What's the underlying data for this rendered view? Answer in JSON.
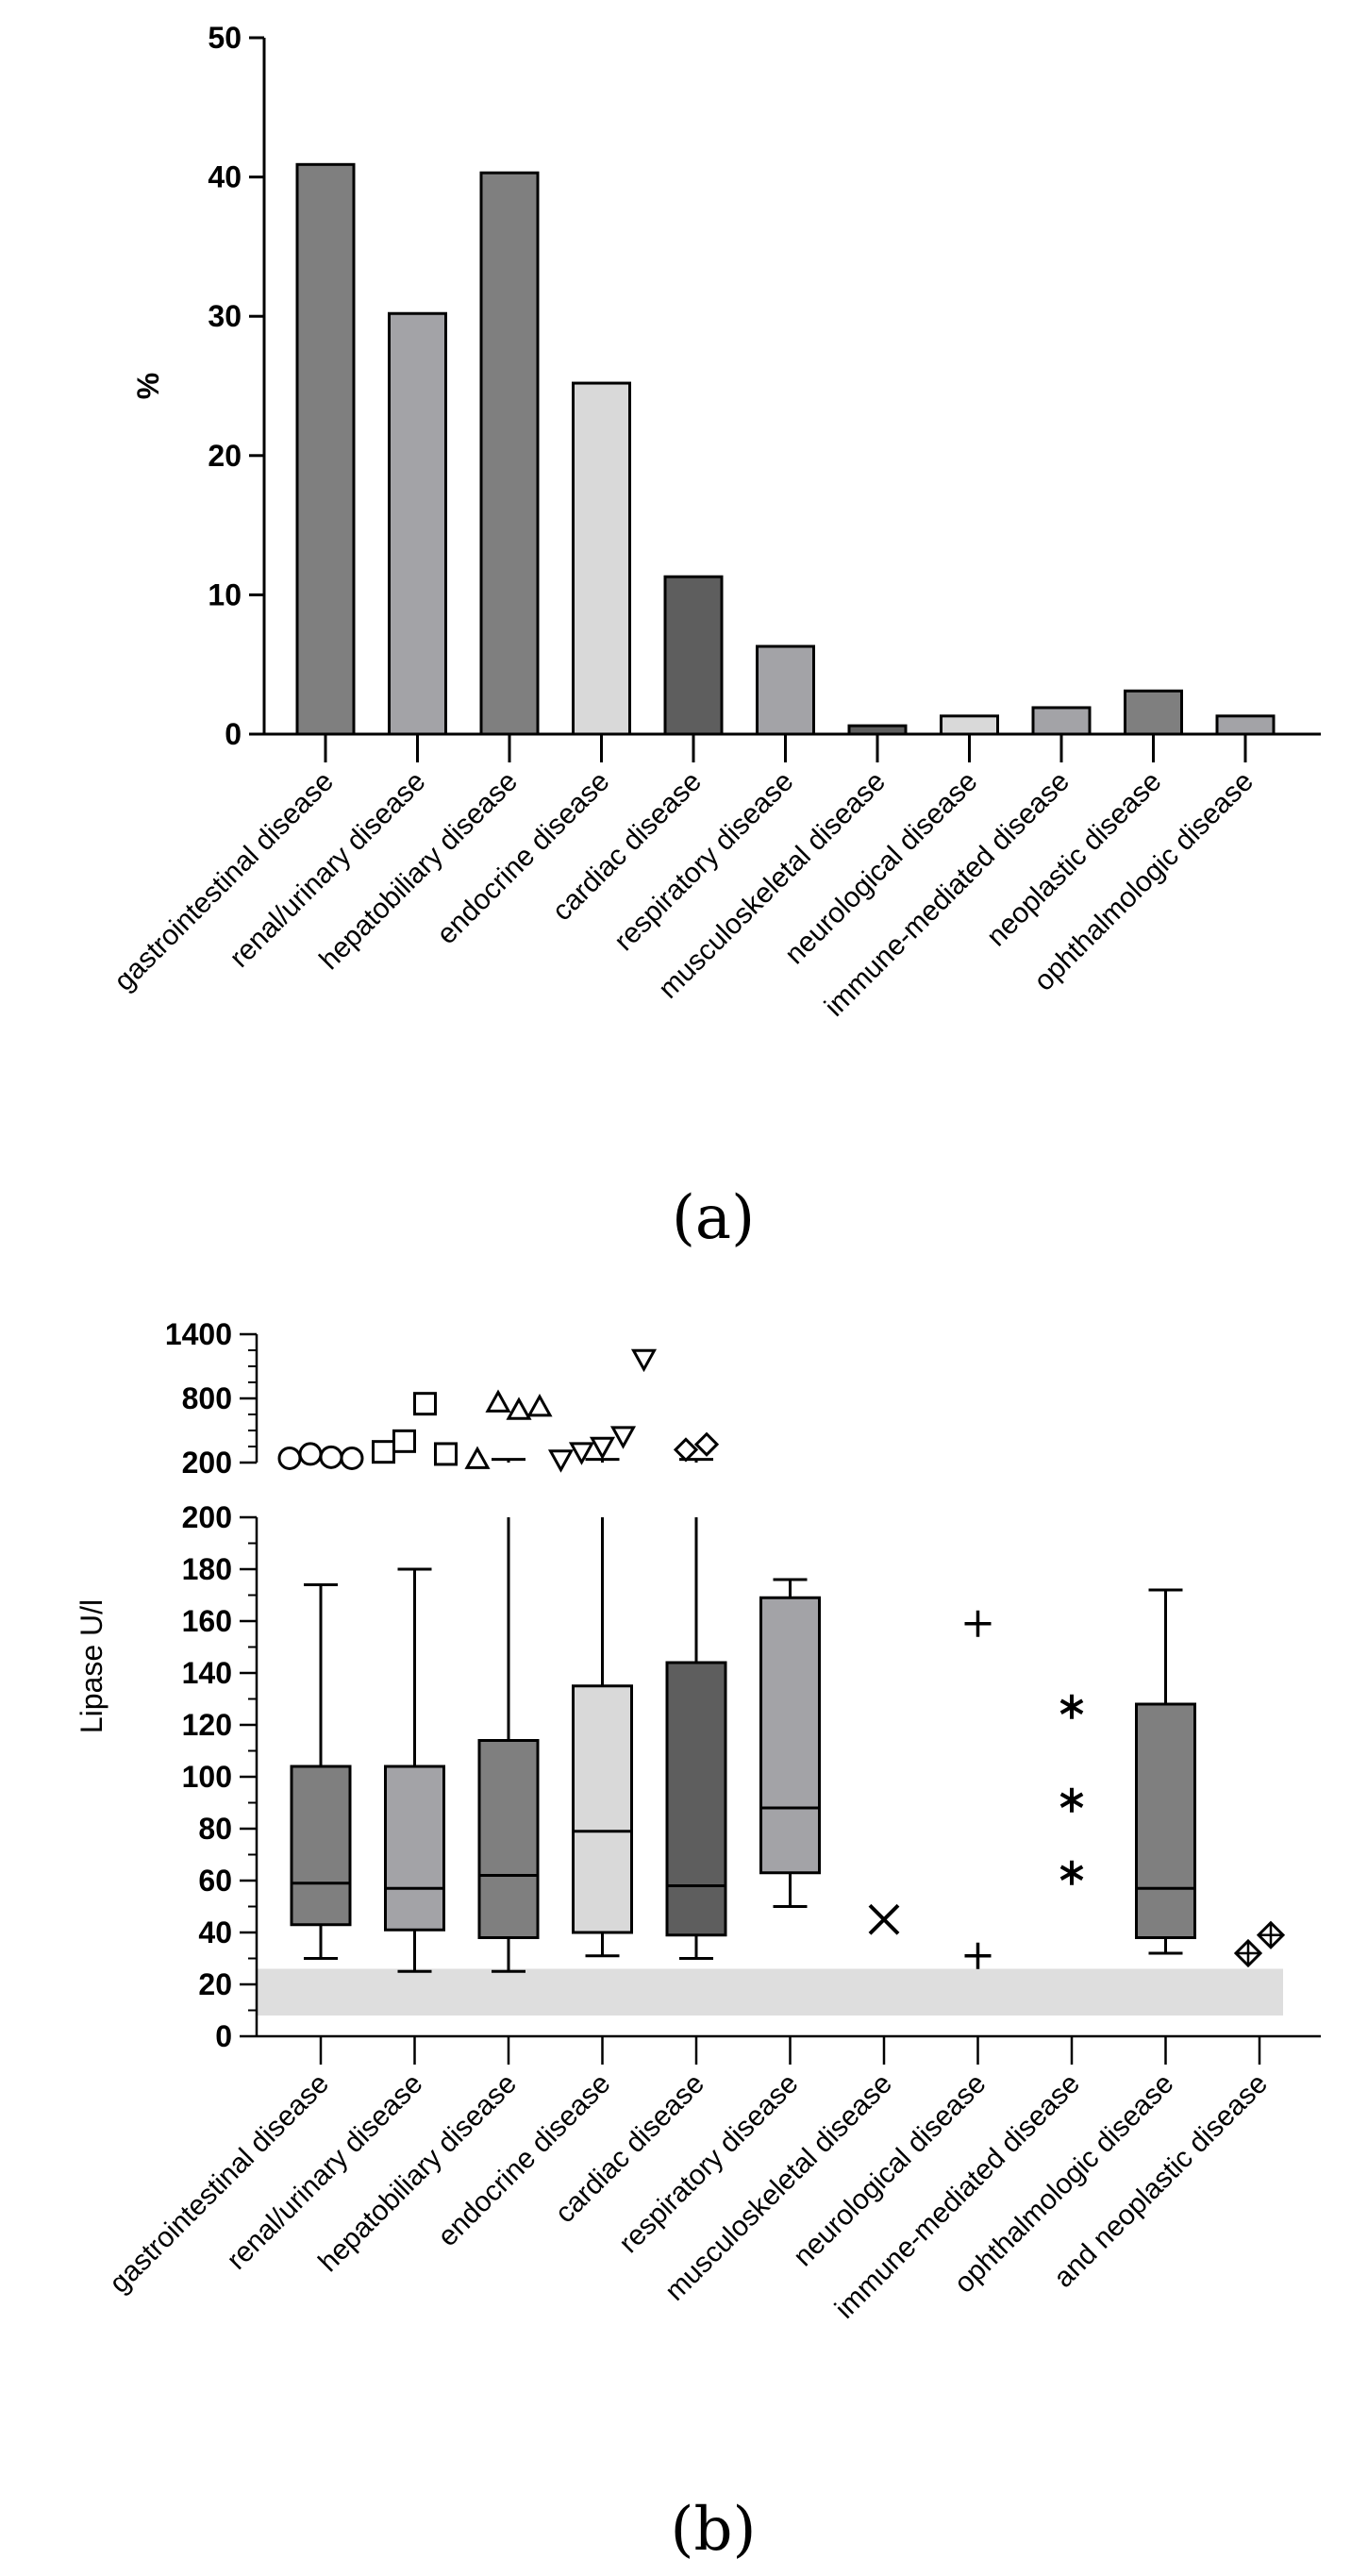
{
  "chart_data": [
    {
      "panel": "(a)",
      "type": "bar",
      "ylabel": "%",
      "ylim": [
        0,
        50
      ],
      "yticks": [
        0,
        10,
        20,
        30,
        40,
        50
      ],
      "categories": [
        "gastrointestinal disease",
        "renal/urinary disease",
        "hepatobiliary disease",
        "endocrine disease",
        "cardiac disease",
        "respiratory disease",
        "musculoskeletal disease",
        "neurological disease",
        "immune-mediated disease",
        "neoplastic disease",
        "ophthalmologic disease"
      ],
      "values": [
        40.9,
        30.2,
        40.3,
        25.2,
        11.3,
        6.3,
        0.6,
        1.3,
        1.9,
        3.1,
        1.3
      ],
      "colors": [
        "#7f7f7f",
        "#a3a3a7",
        "#7f7f7f",
        "#d9d9d9",
        "#5e5e5e",
        "#a3a3a7",
        "#5e5e5e",
        "#d9d9d9",
        "#a3a3a7",
        "#7f7f7f",
        "#a3a3a7"
      ]
    },
    {
      "panel": "(b)",
      "type": "box",
      "ylabel": "Lipase U/l",
      "ylim_lower": [
        0,
        200
      ],
      "yticks_lower": [
        0,
        20,
        40,
        60,
        80,
        100,
        120,
        140,
        160,
        180,
        200
      ],
      "ylim_upper": [
        200,
        1400
      ],
      "yticks_upper": [
        200,
        800,
        1400
      ],
      "reference_range": [
        8,
        26
      ],
      "categories": [
        "gastrointestinal disease",
        "renal/urinary disease",
        "hepatobiliary disease",
        "endocrine disease",
        "cardiac disease",
        "respiratory disease",
        "musculoskeletal disease",
        "neurological disease",
        "immune-mediated disease",
        "ophthalmologic disease",
        "and neoplastic disease"
      ],
      "boxes": [
        {
          "min": 30,
          "q1": 43,
          "median": 59,
          "q3": 104,
          "max": 174,
          "color": "#7f7f7f",
          "outliers": [
            240,
            280,
            250,
            240
          ],
          "marker": "circle"
        },
        {
          "min": 25,
          "q1": 41,
          "median": 57,
          "q3": 104,
          "max": 180,
          "color": "#a3a3a7",
          "outliers": [
            300,
            400,
            750,
            280
          ],
          "marker": "square"
        },
        {
          "min": 25,
          "q1": 38,
          "median": 62,
          "q3": 114,
          "max": 200,
          "color": "#7f7f7f",
          "outliers": [
            230,
            760,
            690,
            720
          ],
          "marker": "triangle-up"
        },
        {
          "min": 31,
          "q1": 40,
          "median": 79,
          "q3": 135,
          "max": 200,
          "color": "#d9d9d9",
          "outliers": [
            230,
            300,
            350,
            450,
            1170
          ],
          "marker": "triangle-down"
        },
        {
          "min": 30,
          "q1": 39,
          "median": 58,
          "q3": 144,
          "max": 200,
          "color": "#5e5e5e",
          "outliers": [
            320,
            370
          ],
          "marker": "diamond"
        },
        {
          "min": 50,
          "q1": 63,
          "median": 88,
          "q3": 169,
          "max": 176,
          "color": "#a3a3a7",
          "outliers": [],
          "marker": "none"
        },
        {
          "points": [
            45
          ],
          "marker": "x"
        },
        {
          "points": [
            159,
            31
          ],
          "marker": "plus"
        },
        {
          "points": [
            127,
            91,
            63
          ],
          "marker": "asterisk"
        },
        {
          "min": 32,
          "q1": 38,
          "median": 57,
          "q3": 128,
          "max": 172,
          "color": "#7f7f7f",
          "outliers": [],
          "marker": "none"
        },
        {
          "points": [
            32,
            39
          ],
          "marker": "diamond-plus"
        }
      ]
    }
  ]
}
